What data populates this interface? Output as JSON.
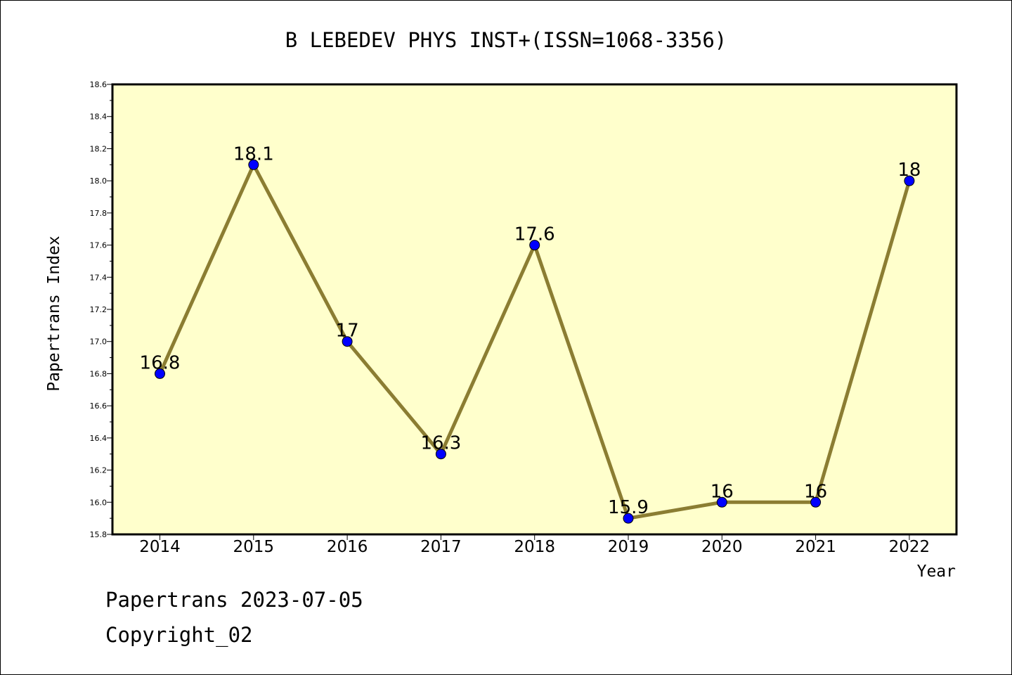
{
  "chart_data": {
    "type": "line",
    "title": "B LEBEDEV PHYS INST+(ISSN=1068-3356)",
    "xlabel": "Year",
    "ylabel": "Papertrans Index",
    "x": [
      "2014",
      "2015",
      "2016",
      "2017",
      "2018",
      "2019",
      "2020",
      "2021",
      "2022"
    ],
    "series": [
      {
        "values": [
          16.8,
          18.1,
          17.0,
          16.3,
          17.6,
          15.9,
          16.0,
          16.0,
          18.0
        ]
      }
    ],
    "data_labels": [
      "16.8",
      "18.1",
      "17",
      "16.3",
      "17.6",
      "15.9",
      "16",
      "16",
      "18"
    ],
    "ylim": [
      15.8,
      18.6
    ],
    "y_ticks": [
      "15.8",
      "16.0",
      "16.2",
      "16.4",
      "16.6",
      "16.8",
      "17.0",
      "17.2",
      "17.4",
      "17.6",
      "17.8",
      "18.0",
      "18.2",
      "18.4",
      "18.6"
    ],
    "grid": false,
    "legend": "none"
  },
  "footer": {
    "date_line": "Papertrans 2023-07-05",
    "copyright_line": "Copyright_02"
  },
  "colors": {
    "plot_background": "#ffffcc",
    "line": "#8b7d32",
    "marker": "#0000ff"
  }
}
